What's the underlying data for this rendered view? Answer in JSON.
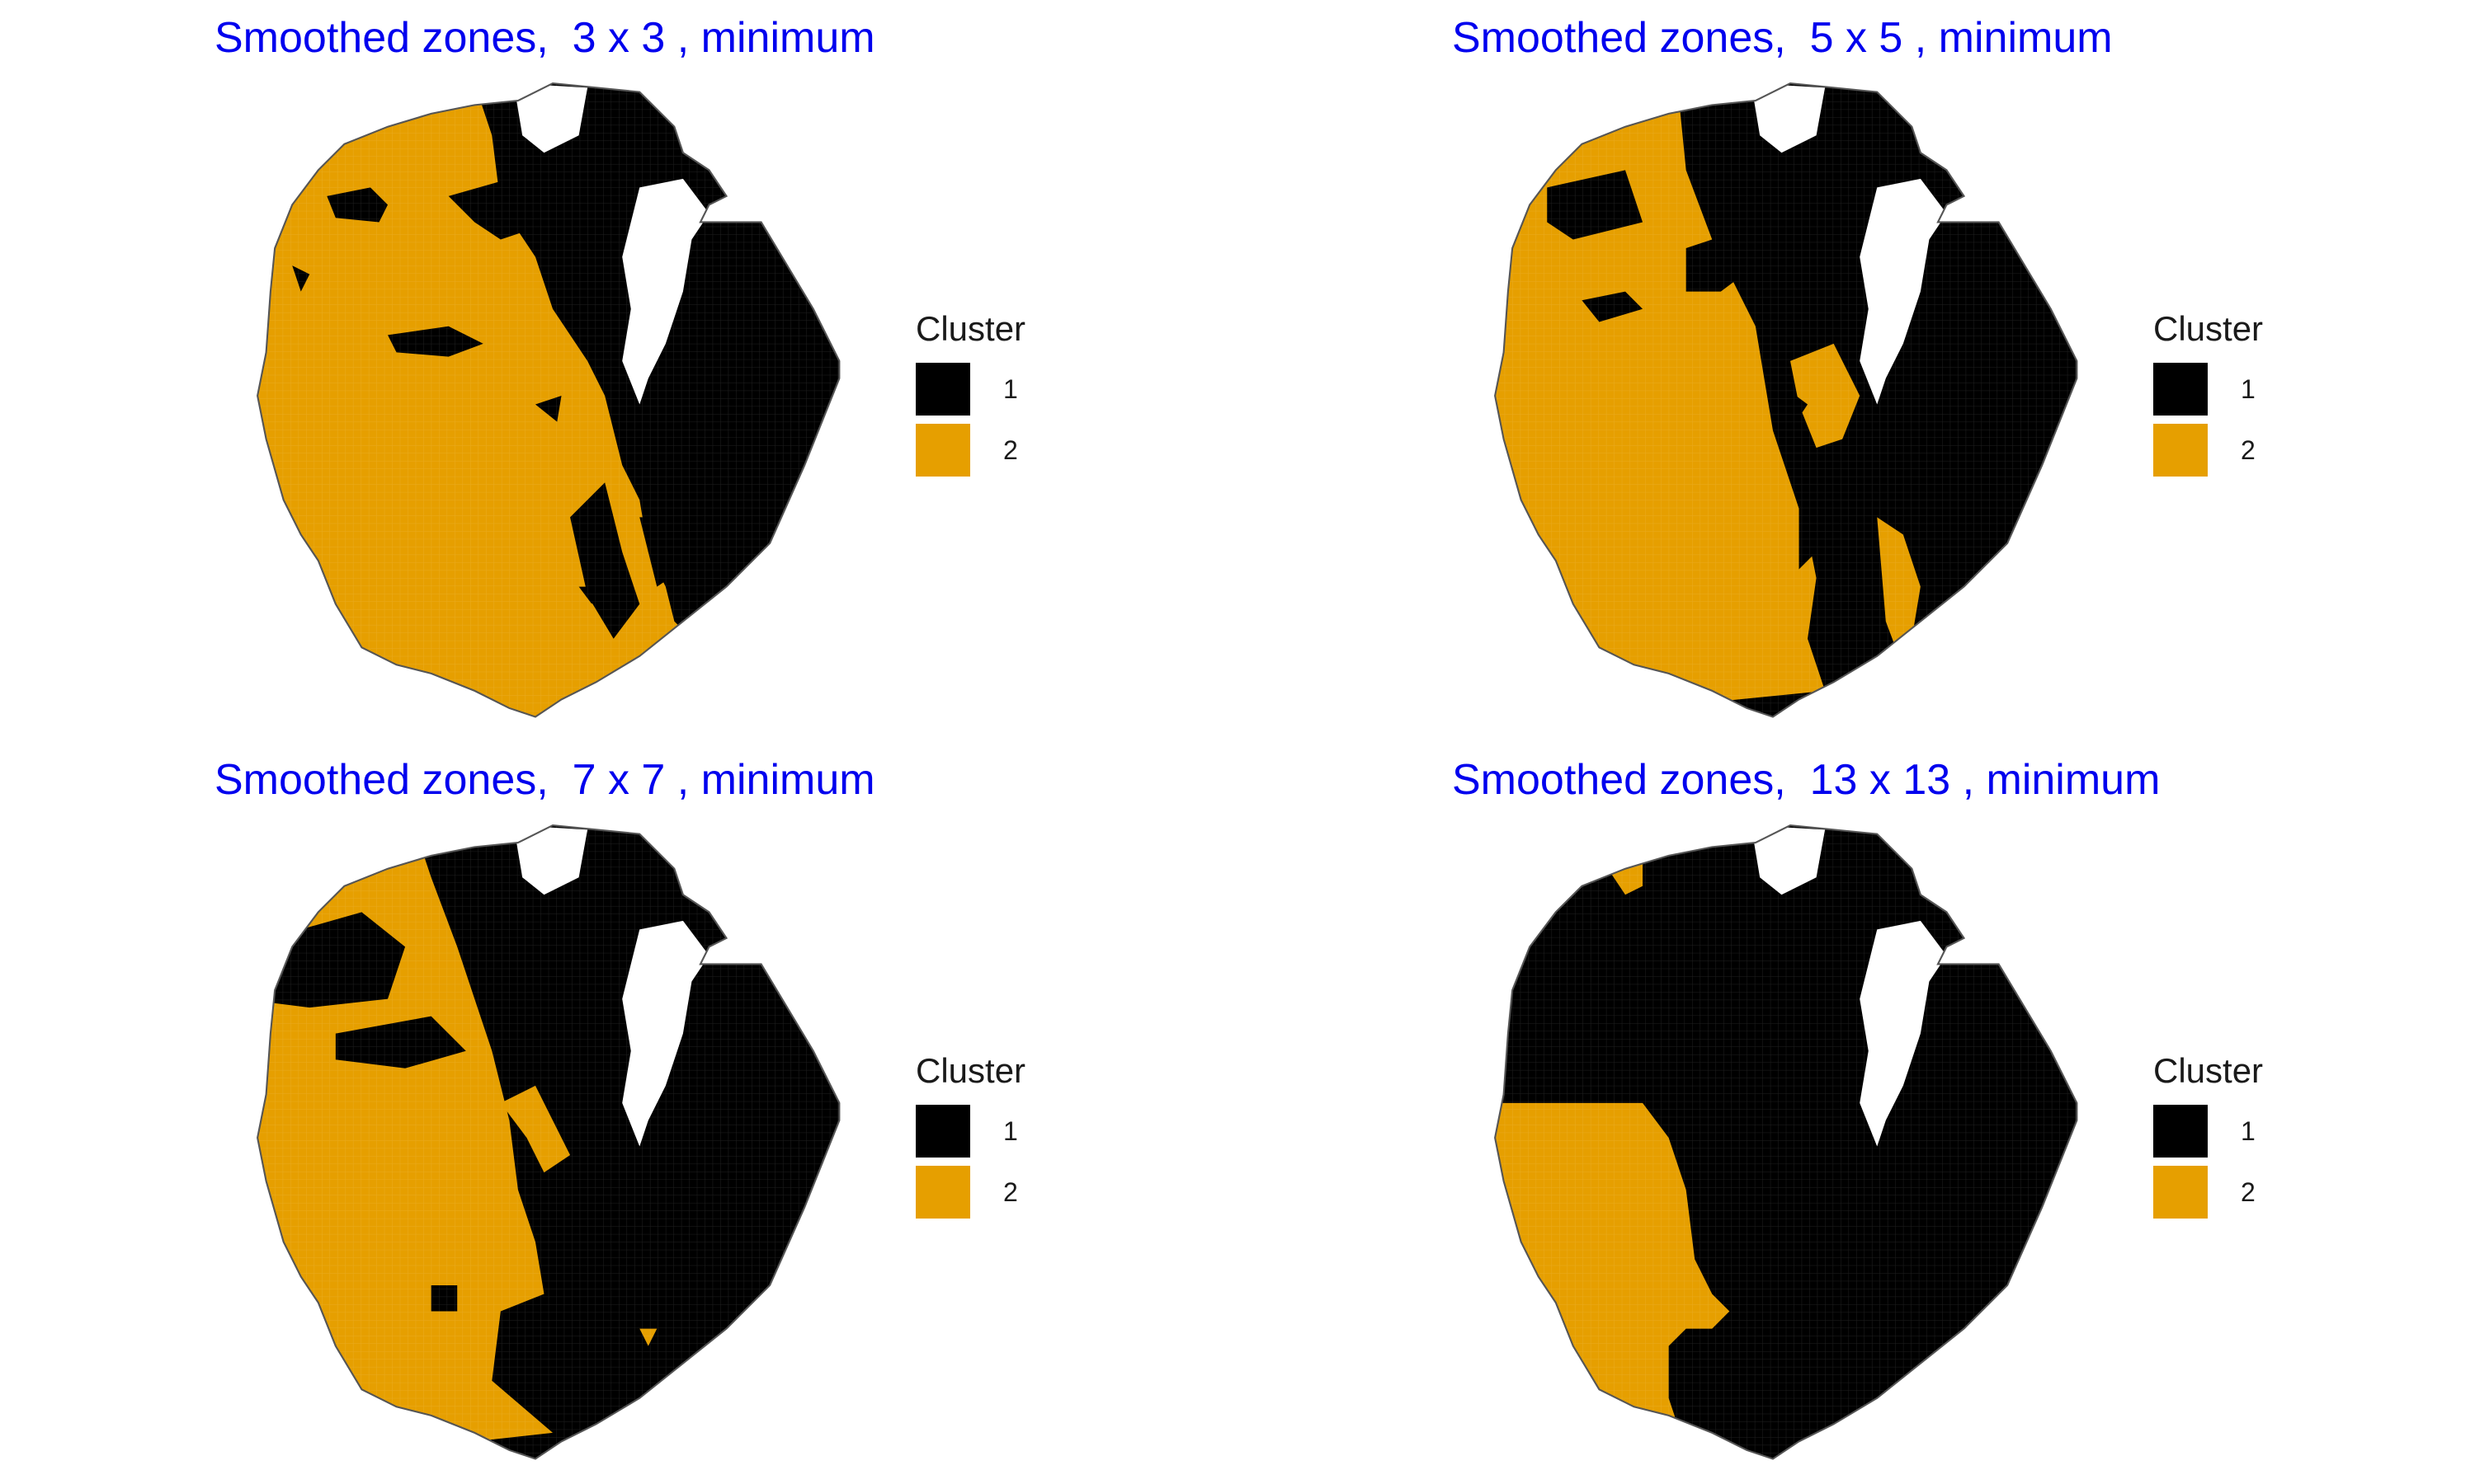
{
  "colors": {
    "cluster_1": "#000000",
    "cluster_2": "#E69F00",
    "title": "#0000EE",
    "outline": "#555555"
  },
  "legend": {
    "title": "Cluster",
    "items": [
      {
        "label": "1",
        "color": "#000000"
      },
      {
        "label": "2",
        "color": "#E69F00"
      }
    ]
  },
  "panels": [
    {
      "title": "Smoothed zones,  3 x 3 , minimum",
      "window": "3 x 3",
      "stat": "minimum"
    },
    {
      "title": "Smoothed zones,  5 x 5 , minimum",
      "window": "5 x 5",
      "stat": "minimum"
    },
    {
      "title": "Smoothed zones,  7 x 7 , minimum",
      "window": "7 x 7",
      "stat": "minimum"
    },
    {
      "title": "Smoothed zones,  13 x 13 , minimum",
      "window": "13 x 13",
      "stat": "minimum"
    }
  ]
}
